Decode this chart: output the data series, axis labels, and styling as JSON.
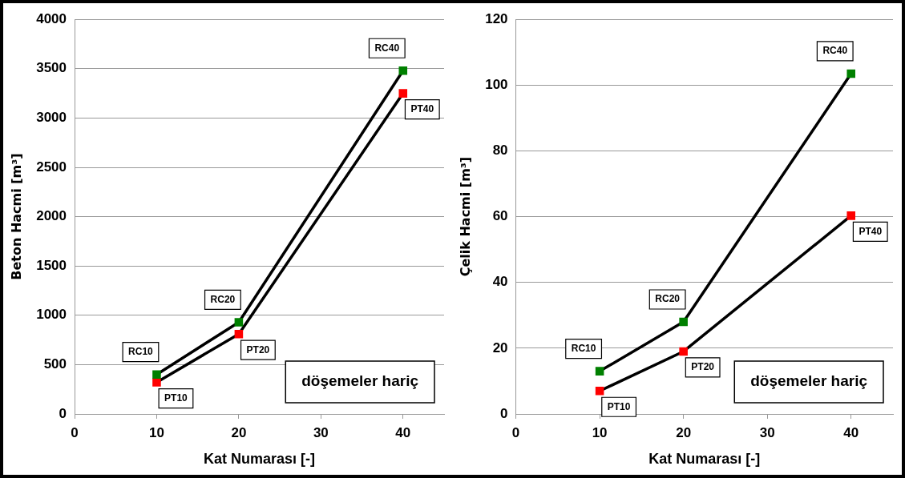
{
  "chart_data": [
    {
      "type": "line",
      "xlabel": "Kat Numarası [-]",
      "ylabel": "Beton Hacmi [m³]",
      "x": [
        10,
        20,
        40
      ],
      "xlim": [
        0,
        45
      ],
      "xticks": [
        0,
        10,
        20,
        30,
        40
      ],
      "ylim": [
        0,
        4000
      ],
      "yticks": [
        0,
        500,
        1000,
        1500,
        2000,
        2500,
        3000,
        3500,
        4000
      ],
      "grid": "y",
      "legend": false,
      "marker": "square",
      "line_style": "solid",
      "series": [
        {
          "color": "#000000",
          "colors": [
            "#008000",
            "#008000",
            "#008000"
          ],
          "values": [
            400,
            930,
            3480
          ]
        },
        {
          "color": "#000000",
          "colors": [
            "#ff0000",
            "#ff0000",
            "#ff0000"
          ],
          "values": [
            320,
            810,
            3250
          ]
        }
      ],
      "annotations": [
        {
          "text": "RC10",
          "x": 10,
          "y": 400
        },
        {
          "text": "RC20",
          "x": 20,
          "y": 930
        },
        {
          "text": "RC40",
          "x": 40,
          "y": 3480
        },
        {
          "text": "PT10",
          "x": 10,
          "y": 320
        },
        {
          "text": "PT20",
          "x": 20,
          "y": 810
        },
        {
          "text": "PT40",
          "x": 40,
          "y": 3250
        },
        "döşemeler hariç"
      ]
    },
    {
      "type": "line",
      "xlabel": "Kat Numarası [-]",
      "ylabel": "Çelik Hacmi [m³]",
      "x": [
        10,
        20,
        40
      ],
      "xlim": [
        0,
        45
      ],
      "xticks": [
        0,
        10,
        20,
        30,
        40
      ],
      "ylim": [
        0,
        120
      ],
      "yticks": [
        0,
        20,
        40,
        60,
        80,
        100,
        120
      ],
      "grid": "y",
      "legend": false,
      "marker": "square",
      "line_style": "solid",
      "series": [
        {
          "color": "#000000",
          "colors": [
            "#008000",
            "#008000",
            "#008000"
          ],
          "values": [
            13,
            28,
            103.5
          ]
        },
        {
          "color": "#000000",
          "colors": [
            "#ff0000",
            "#ff0000",
            "#ff0000"
          ],
          "values": [
            7,
            19,
            60.3
          ]
        }
      ],
      "annotations": [
        {
          "text": "RC10",
          "x": 10,
          "y": 13
        },
        {
          "text": "RC20",
          "x": 20,
          "y": 28
        },
        {
          "text": "RC40",
          "x": 40,
          "y": 103.5
        },
        {
          "text": "PT10",
          "x": 10,
          "y": 7
        },
        {
          "text": "PT20",
          "x": 20,
          "y": 19
        },
        {
          "text": "PT40",
          "x": 40,
          "y": 60.3
        },
        "döşemeler hariç"
      ]
    }
  ]
}
